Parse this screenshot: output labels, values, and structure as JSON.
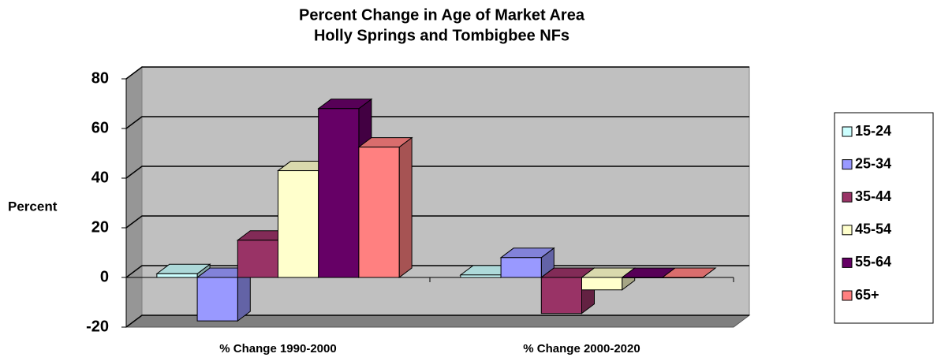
{
  "chart_data": {
    "type": "bar3d",
    "title": "Percent Change in Age of Market Area",
    "subtitle": "Holly Springs and Tombigbee NFs",
    "y_label": "Percent",
    "categories": [
      "% Change 1990-2000",
      "% Change 2000-2020"
    ],
    "series": [
      {
        "name": "15-24",
        "color": "#ccffff",
        "values": [
          1.5,
          1
        ]
      },
      {
        "name": "25-34",
        "color": "#9999ff",
        "values": [
          -17.5,
          8
        ]
      },
      {
        "name": "35-44",
        "color": "#993366",
        "values": [
          15,
          -14.5
        ]
      },
      {
        "name": "45-54",
        "color": "#ffffcc",
        "values": [
          43,
          -5
        ]
      },
      {
        "name": "55-64",
        "color": "#660066",
        "values": [
          68,
          0
        ]
      },
      {
        "name": "65+",
        "color": "#ff8080",
        "values": [
          52.5,
          0
        ]
      }
    ],
    "ylim": [
      -20,
      80
    ],
    "yticks": [
      -20,
      0,
      20,
      40,
      60,
      80
    ],
    "grid": true,
    "legend": "right"
  }
}
